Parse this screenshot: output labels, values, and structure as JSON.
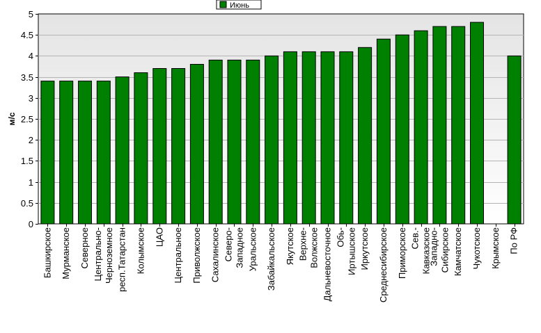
{
  "chart_data": {
    "type": "bar",
    "title": "",
    "xlabel": "",
    "ylabel": "м/с",
    "ylim": [
      0,
      5
    ],
    "yticks": [
      0,
      0.5,
      1,
      1.5,
      2,
      2.5,
      3,
      3.5,
      4,
      4.5,
      5
    ],
    "ytick_labels": [
      "0",
      "0.5",
      "1",
      "1.5",
      "2",
      "2.5",
      "3",
      "3.5",
      "4",
      "4.5",
      "5"
    ],
    "grid": true,
    "legend_position": "top-center",
    "bar_color": "#008000",
    "categories": [
      "Башкирское",
      "Мурманское",
      "Северное",
      "Центрально-Черноземное",
      "респ.Татарстан",
      "Колымское",
      "ЦАО",
      "Центральное",
      "Приволжское",
      "Сахалинское",
      "Северо-Западное",
      "Уральское",
      "Забайкальское",
      "Якутское",
      "Верхне-Волжское",
      "Дальневосточное",
      "Обь-Иртышское",
      "Иркутское",
      "Среднесибирское",
      "Приморское",
      "Сев.-Кавказское",
      "Западно-Сибирское",
      "Камчатское",
      "Чукотское",
      "Крымское",
      "По РФ"
    ],
    "category_lines": [
      [
        "Башкирское"
      ],
      [
        "Мурманское"
      ],
      [
        "Северное"
      ],
      [
        "Центрально-",
        "Черноземное"
      ],
      [
        "респ.Татарстан"
      ],
      [
        "Колымское"
      ],
      [
        "ЦАО"
      ],
      [
        "Центральное"
      ],
      [
        "Приволжское"
      ],
      [
        "Сахалинское"
      ],
      [
        "Северо-",
        "Западное"
      ],
      [
        "Уральское"
      ],
      [
        "Забайкальское"
      ],
      [
        "Якутское"
      ],
      [
        "Верхне-",
        "Волжское"
      ],
      [
        "Дальневосточное"
      ],
      [
        "Обь-",
        "Иртышское"
      ],
      [
        "Иркутское"
      ],
      [
        "Среднесибирское"
      ],
      [
        "Приморское"
      ],
      [
        "Сев.-",
        "Кавказское"
      ],
      [
        "Западно-",
        "Сибирское"
      ],
      [
        "Камчатское"
      ],
      [
        "Чукотское"
      ],
      [
        "Крымское"
      ],
      [
        "По РФ"
      ]
    ],
    "series": [
      {
        "name": "Июнь",
        "values": [
          3.4,
          3.4,
          3.4,
          3.4,
          3.5,
          3.6,
          3.7,
          3.7,
          3.8,
          3.9,
          3.9,
          3.9,
          4.0,
          4.1,
          4.1,
          4.1,
          4.1,
          4.2,
          4.4,
          4.5,
          4.6,
          4.7,
          4.7,
          4.8,
          null,
          4.0
        ]
      }
    ]
  }
}
